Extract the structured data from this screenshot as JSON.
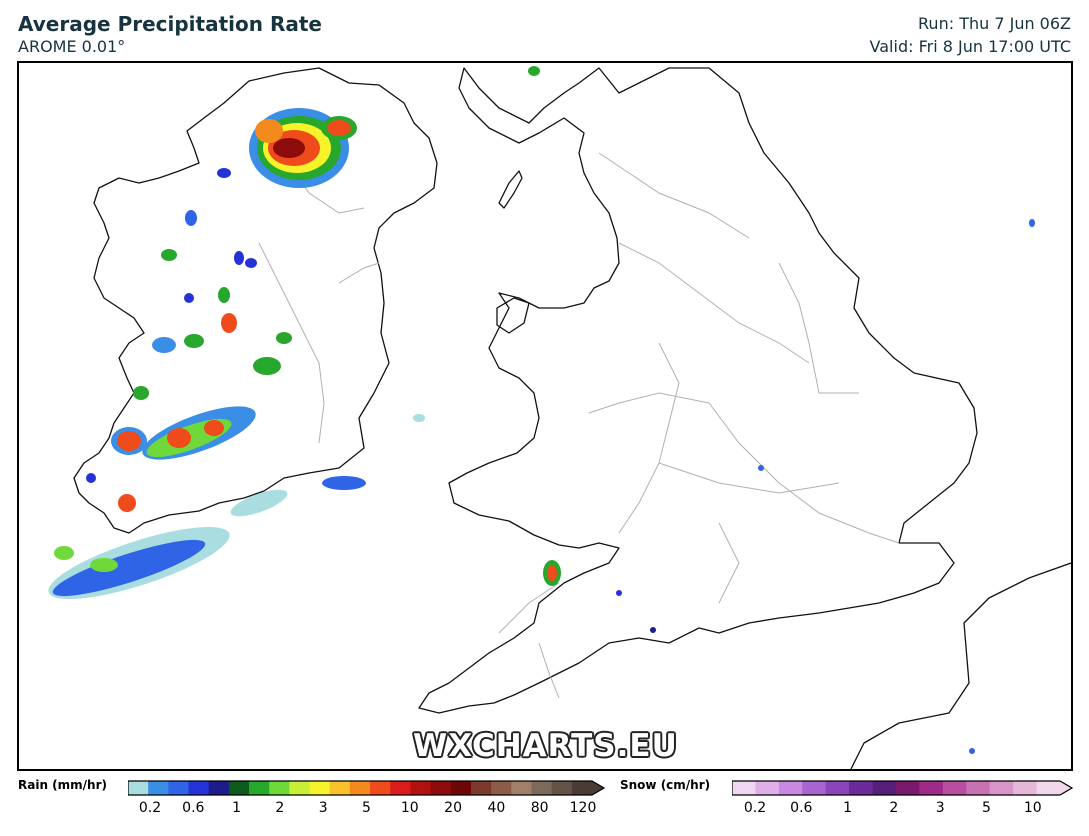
{
  "header": {
    "title": "Average Precipitation Rate",
    "model": "AROME 0.01°",
    "run": "Run: Thu 7 Jun 06Z",
    "valid": "Valid: Fri 8 Jun 17:00 UTC"
  },
  "watermark": "WXCHARTS.EU",
  "legend": {
    "rain": {
      "label": "Rain (mm/hr)",
      "colors": [
        "#a9dde0",
        "#3a8ee6",
        "#2f64e6",
        "#2433d8",
        "#1c1c8c",
        "#0c5a1c",
        "#27a72b",
        "#6fd93b",
        "#c8ef35",
        "#f6f32a",
        "#f7c22a",
        "#f4891d",
        "#ef4b1b",
        "#da1d1a",
        "#b3110f",
        "#8e0b0b",
        "#6d0606",
        "#7a3a2c",
        "#8c5c49",
        "#a08068",
        "#7e6a5a",
        "#645448",
        "#4a3c34"
      ],
      "tick_labels": [
        "0.2",
        "0.6",
        "1",
        "2",
        "3",
        "5",
        "10",
        "20",
        "40",
        "80",
        "120"
      ]
    },
    "snow": {
      "label": "Snow (cm/hr)",
      "colors": [
        "#f0d6f0",
        "#dfb0e8",
        "#c88ae0",
        "#a864d0",
        "#8a45b8",
        "#6a2a98",
        "#56207a",
        "#7a1a6c",
        "#a02a88",
        "#b84ea0",
        "#c872b4",
        "#d896c8",
        "#e6b8d8",
        "#f2d8ea"
      ],
      "tick_labels": [
        "0.2",
        "0.6",
        "1",
        "2",
        "3",
        "5",
        "10"
      ]
    }
  }
}
